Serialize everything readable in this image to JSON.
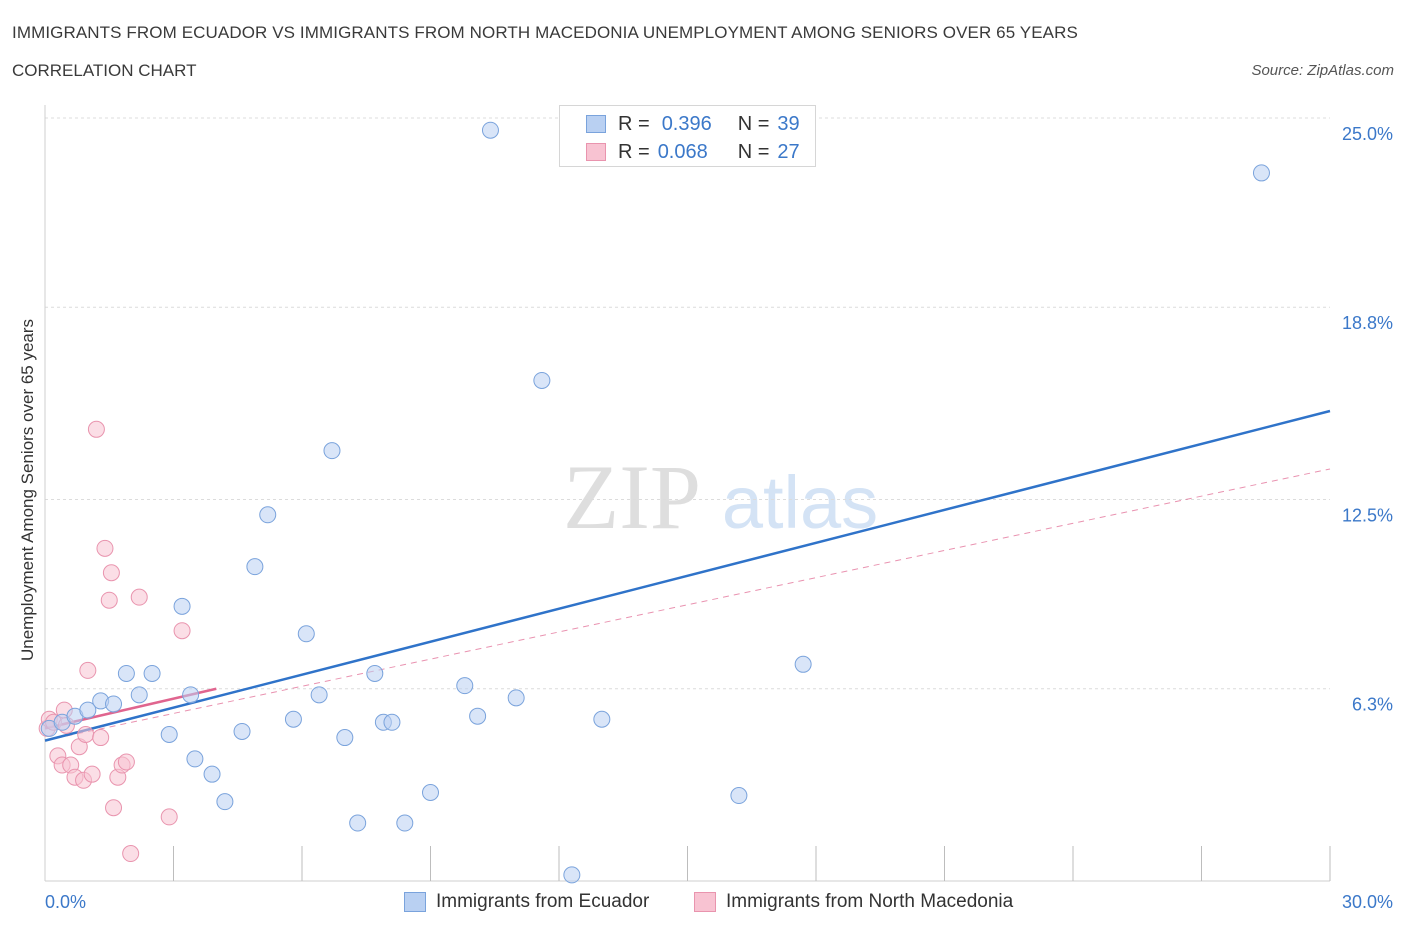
{
  "header": {
    "title": "IMMIGRANTS FROM ECUADOR VS IMMIGRANTS FROM NORTH MACEDONIA UNEMPLOYMENT AMONG SENIORS OVER 65 YEARS",
    "subtitle": "CORRELATION CHART",
    "source": "Source: ZipAtlas.com"
  },
  "watermark": {
    "zip": "ZIP",
    "atlas": "atlas"
  },
  "legend": {
    "r_label": "R =",
    "n_label": "N =",
    "series1": {
      "r": "0.396",
      "n": "39"
    },
    "series2": {
      "r": "0.068",
      "n": "27"
    }
  },
  "colors": {
    "blue_fill": "#b9d0f2",
    "blue_stroke": "#7aa3dc",
    "blue_line": "#2f73c9",
    "pink_fill": "#f8c3d2",
    "pink_stroke": "#e994ae",
    "pink_line": "#e0658f",
    "grid": "#dcdcdc",
    "tick_text": "#3b78c9"
  },
  "chart_data": {
    "type": "scatter",
    "title": "IMMIGRANTS FROM ECUADOR VS IMMIGRANTS FROM NORTH MACEDONIA UNEMPLOYMENT AMONG SENIORS OVER 65 YEARS",
    "xlabel": "",
    "ylabel": "Unemployment Among Seniors over 65 years",
    "xlim": [
      0,
      30
    ],
    "ylim": [
      0,
      25
    ],
    "x_tick_labels": [
      "0.0%",
      "30.0%"
    ],
    "y_ticks": [
      6.3,
      12.5,
      18.8,
      25.0
    ],
    "y_tick_labels": [
      "6.3%",
      "12.5%",
      "18.8%",
      "25.0%"
    ],
    "grid": true,
    "series": [
      {
        "name": "Immigrants from Ecuador",
        "color": "#b9d0f2",
        "r": 0.396,
        "n": 39,
        "trend": {
          "x": [
            0,
            30
          ],
          "y": [
            4.6,
            15.4
          ]
        },
        "points": [
          [
            0.1,
            5.0
          ],
          [
            0.4,
            5.2
          ],
          [
            0.7,
            5.4
          ],
          [
            1.0,
            5.6
          ],
          [
            1.3,
            5.9
          ],
          [
            1.6,
            5.8
          ],
          [
            1.9,
            6.8
          ],
          [
            2.2,
            6.1
          ],
          [
            2.5,
            6.8
          ],
          [
            2.9,
            4.8
          ],
          [
            3.2,
            9.0
          ],
          [
            3.4,
            6.1
          ],
          [
            3.5,
            4.0
          ],
          [
            3.9,
            3.5
          ],
          [
            4.2,
            2.6
          ],
          [
            4.6,
            4.9
          ],
          [
            4.9,
            10.3
          ],
          [
            5.2,
            12.0
          ],
          [
            5.8,
            5.3
          ],
          [
            6.1,
            8.1
          ],
          [
            6.4,
            6.1
          ],
          [
            6.7,
            14.1
          ],
          [
            7.0,
            4.7
          ],
          [
            7.3,
            1.9
          ],
          [
            7.7,
            6.8
          ],
          [
            7.9,
            5.2
          ],
          [
            8.1,
            5.2
          ],
          [
            8.4,
            1.9
          ],
          [
            9.0,
            2.9
          ],
          [
            9.8,
            6.4
          ],
          [
            10.1,
            5.4
          ],
          [
            10.4,
            24.6
          ],
          [
            11.0,
            6.0
          ],
          [
            11.6,
            16.4
          ],
          [
            12.3,
            0.2
          ],
          [
            13.0,
            5.3
          ],
          [
            16.2,
            2.8
          ],
          [
            17.7,
            7.1
          ],
          [
            28.4,
            23.2
          ]
        ]
      },
      {
        "name": "Immigrants from North Macedonia",
        "color": "#f8c3d2",
        "r": 0.068,
        "n": 27,
        "trend": {
          "x": [
            0,
            4
          ],
          "y": [
            5.0,
            6.3
          ]
        },
        "trend_extended": {
          "x": [
            0,
            30
          ],
          "y": [
            4.6,
            13.5
          ]
        },
        "points": [
          [
            0.05,
            5.0
          ],
          [
            0.1,
            5.3
          ],
          [
            0.2,
            5.2
          ],
          [
            0.3,
            4.1
          ],
          [
            0.4,
            3.8
          ],
          [
            0.45,
            5.6
          ],
          [
            0.5,
            5.1
          ],
          [
            0.6,
            3.8
          ],
          [
            0.7,
            3.4
          ],
          [
            0.8,
            4.4
          ],
          [
            0.9,
            3.3
          ],
          [
            0.95,
            4.8
          ],
          [
            1.0,
            6.9
          ],
          [
            1.1,
            3.5
          ],
          [
            1.2,
            14.8
          ],
          [
            1.3,
            4.7
          ],
          [
            1.4,
            10.9
          ],
          [
            1.5,
            9.2
          ],
          [
            1.55,
            10.1
          ],
          [
            1.6,
            2.4
          ],
          [
            1.7,
            3.4
          ],
          [
            1.8,
            3.8
          ],
          [
            1.9,
            3.9
          ],
          [
            2.0,
            0.9
          ],
          [
            2.2,
            9.3
          ],
          [
            2.9,
            2.1
          ],
          [
            3.2,
            8.2
          ]
        ]
      }
    ]
  },
  "bottom_legend": {
    "series1": "Immigrants from Ecuador",
    "series2": "Immigrants from North Macedonia"
  }
}
